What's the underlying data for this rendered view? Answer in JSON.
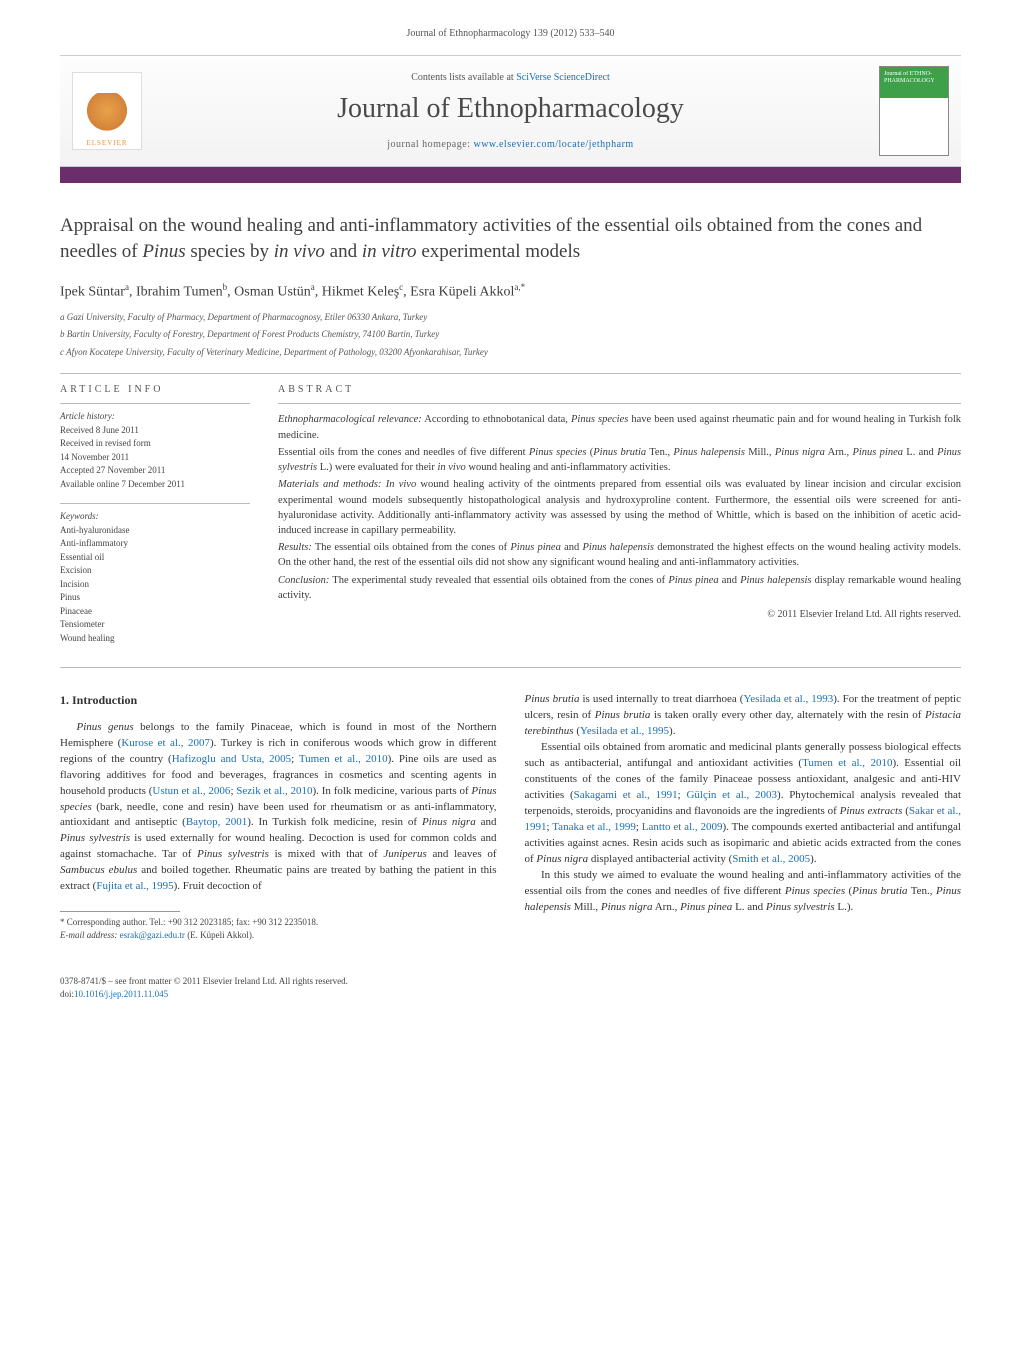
{
  "header": {
    "running_head": "Journal of Ethnopharmacology 139 (2012) 533–540"
  },
  "banner": {
    "elsevier_label": "ELSEVIER",
    "contents_prefix": "Contents lists available at ",
    "contents_link": "SciVerse ScienceDirect",
    "journal_title": "Journal of Ethnopharmacology",
    "homepage_prefix": "journal homepage: ",
    "homepage_link": "www.elsevier.com/locate/jethpharm",
    "cover_text": "Journal of ETHNO-PHARMACOLOGY"
  },
  "article": {
    "title_pre": "Appraisal on the wound healing and anti-inflammatory activities of the essential oils obtained from the cones and needles of ",
    "title_em": "Pinus",
    "title_post": " species by ",
    "title_em2": "in vivo",
    "title_post2": " and ",
    "title_em3": "in vitro",
    "title_post3": " experimental models",
    "authors_html": "Ipek Süntar<sup>a</sup>, Ibrahim Tumen<sup>b</sup>, Osman Ustün<sup>a</sup>, Hikmet Keleş<sup>c</sup>, Esra Küpeli Akkol<sup>a,*</sup>",
    "affiliations": [
      "a Gazi University, Faculty of Pharmacy, Department of Pharmacognosy, Etiler 06330 Ankara, Turkey",
      "b Bartin University, Faculty of Forestry, Department of Forest Products Chemistry, 74100 Bartin, Turkey",
      "c Afyon Kocatepe University, Faculty of Veterinary Medicine, Department of Pathology, 03200 Afyonkarahisar, Turkey"
    ]
  },
  "info": {
    "heading": "article info",
    "history_label": "Article history:",
    "history": [
      "Received 8 June 2011",
      "Received in revised form",
      "14 November 2011",
      "Accepted 27 November 2011",
      "Available online 7 December 2011"
    ],
    "keywords_label": "Keywords:",
    "keywords": [
      "Anti-hyaluronidase",
      "Anti-inflammatory",
      "Essential oil",
      "Excision",
      "Incision",
      "Pinus",
      "Pinaceae",
      "Tensiometer",
      "Wound healing"
    ]
  },
  "abstract": {
    "heading": "abstract",
    "paras": [
      {
        "label": "Ethnopharmacological relevance:",
        "text": " According to ethnobotanical data, Pinus species have been used against rheumatic pain and for wound healing in Turkish folk medicine."
      },
      {
        "label": "",
        "text": "Essential oils from the cones and needles of five different Pinus species (Pinus brutia Ten., Pinus halepensis Mill., Pinus nigra Arn., Pinus pinea L. and Pinus sylvestris L.) were evaluated for their in vivo wound healing and anti-inflammatory activities."
      },
      {
        "label": "Materials and methods:",
        "text": " In vivo wound healing activity of the ointments prepared from essential oils was evaluated by linear incision and circular excision experimental wound models subsequently histopathological analysis and hydroxyproline content. Furthermore, the essential oils were screened for anti-hyaluronidase activity. Additionally anti-inflammatory activity was assessed by using the method of Whittle, which is based on the inhibition of acetic acid-induced increase in capillary permeability."
      },
      {
        "label": "Results:",
        "text": " The essential oils obtained from the cones of Pinus pinea and Pinus halepensis demonstrated the highest effects on the wound healing activity models. On the other hand, the rest of the essential oils did not show any significant wound healing and anti-inflammatory activities."
      },
      {
        "label": "Conclusion:",
        "text": " The experimental study revealed that essential oils obtained from the cones of Pinus pinea and Pinus halepensis display remarkable wound healing activity."
      }
    ],
    "copyright": "© 2011 Elsevier Ireland Ltd. All rights reserved."
  },
  "body": {
    "section_heading": "1. Introduction",
    "p1": "Pinus genus belongs to the family Pinaceae, which is found in most of the Northern Hemisphere (Kurose et al., 2007). Turkey is rich in coniferous woods which grow in different regions of the country (Hafizoglu and Usta, 2005; Tumen et al., 2010). Pine oils are used as flavoring additives for food and beverages, fragrances in cosmetics and scenting agents in household products (Ustun et al., 2006; Sezik et al., 2010). In folk medicine, various parts of Pinus species (bark, needle, cone and resin) have been used for rheumatism or as anti-inflammatory, antioxidant and antiseptic (Baytop, 2001). In Turkish folk medicine, resin of Pinus nigra and Pinus sylvestris is used externally for wound healing. Decoction is used for common colds and against stomachache. Tar of Pinus sylvestris is mixed with that of Juniperus and leaves of Sambucus ebulus and boiled together. Rheumatic pains are treated by bathing the patient in this extract (Fujita et al., 1995). Fruit decoction of",
    "p2": "Pinus brutia is used internally to treat diarrhoea (Yesilada et al., 1993). For the treatment of peptic ulcers, resin of Pinus brutia is taken orally every other day, alternately with the resin of Pistacia terebinthus (Yesilada et al., 1995).",
    "p3": "Essential oils obtained from aromatic and medicinal plants generally possess biological effects such as antibacterial, antifungal and antioxidant activities (Tumen et al., 2010). Essential oil constituents of the cones of the family Pinaceae possess antioxidant, analgesic and anti-HIV activities (Sakagami et al., 1991; Gülçin et al., 2003). Phytochemical analysis revealed that terpenoids, steroids, procyanidins and flavonoids are the ingredients of Pinus extracts (Sakar et al., 1991; Tanaka et al., 1999; Lantto et al., 2009). The compounds exerted antibacterial and antifungal activities against acnes. Resin acids such as isopimaric and abietic acids extracted from the cones of Pinus nigra displayed antibacterial activity (Smith et al., 2005).",
    "p4": "In this study we aimed to evaluate the wound healing and anti-inflammatory activities of the essential oils from the cones and needles of five different Pinus species (Pinus brutia Ten., Pinus halepensis Mill., Pinus nigra Arn., Pinus pinea L. and Pinus sylvestris L.)."
  },
  "footnote": {
    "line1": "* Corresponding author. Tel.: +90 312 2023185; fax: +90 312 2235018.",
    "line2_label": "E-mail address: ",
    "line2_email": "esrak@gazi.edu.tr",
    "line2_tail": " (E. Küpeli Akkol)."
  },
  "footer": {
    "line1": "0378-8741/$ – see front matter © 2011 Elsevier Ireland Ltd. All rights reserved.",
    "line2_pre": "doi:",
    "line2_link": "10.1016/j.jep.2011.11.045"
  },
  "colors": {
    "link": "#1b6fb5",
    "bar": "#6b2e6b",
    "text": "#333333",
    "muted": "#555555"
  }
}
